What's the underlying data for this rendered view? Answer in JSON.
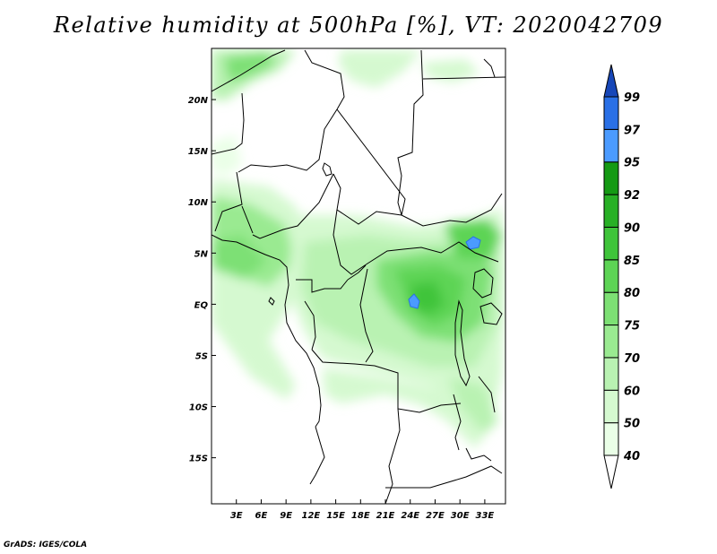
{
  "title": "Relative humidity at 500hPa [%], VT: 2020042709",
  "credit": "GrADS: IGES/COLA",
  "map": {
    "lon_range": [
      0,
      35.5
    ],
    "lat_range": [
      -19.5,
      25
    ],
    "lon_ticks": [
      "3E",
      "6E",
      "9E",
      "12E",
      "15E",
      "18E",
      "21E",
      "24E",
      "27E",
      "30E",
      "33E"
    ],
    "lat_ticks": [
      "20N",
      "15N",
      "10N",
      "5N",
      "EQ",
      "5S",
      "10S",
      "15S"
    ]
  },
  "colorbar": {
    "levels": [
      "40",
      "50",
      "60",
      "70",
      "75",
      "80",
      "85",
      "90",
      "92",
      "95",
      "97",
      "99"
    ],
    "colors": {
      "40_50": "#eaffe7",
      "50_60": "#d5f9d0",
      "60_70": "#b9f2b2",
      "70_75": "#9aea91",
      "75_80": "#7de074",
      "80_85": "#5dd455",
      "85_90": "#3fc43a",
      "90_92": "#28b025",
      "92_95": "#159a14",
      "95_97": "#4b9bff",
      "97_99": "#2a70e6",
      "99_plus": "#1747b8"
    }
  }
}
